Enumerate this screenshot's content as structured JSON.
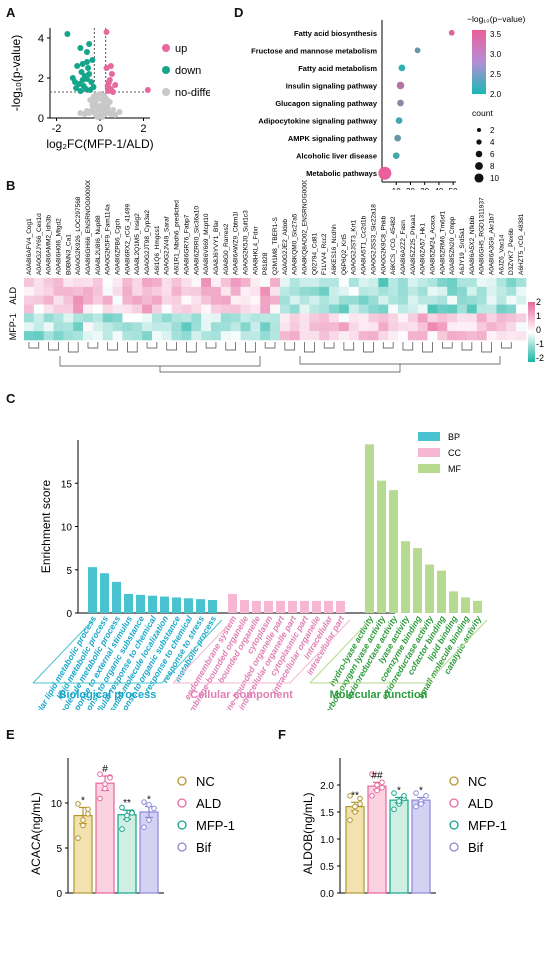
{
  "panel_labels": {
    "a": "A",
    "b": "B",
    "c": "C",
    "d": "D",
    "e": "E",
    "f": "F"
  },
  "chart_data": [
    {
      "panel": "A",
      "type": "scatter",
      "xlabel": "log₂FC(MFP-1/ALD)",
      "ylabel": "-log₁₀(p-value)",
      "xlim": [
        -2.3,
        2.3
      ],
      "ylim": [
        0,
        4.5
      ],
      "xticks": [
        "-2",
        "0",
        "2"
      ],
      "yticks": [
        "0",
        "2",
        "4"
      ],
      "legend": [
        "up",
        "down",
        "no-difference"
      ],
      "colors": {
        "up": "#e7689e",
        "down": "#14a58b",
        "no-difference": "#c8c8c8"
      },
      "points": {
        "up": [
          [
            0.3,
            4.3
          ],
          [
            0.35,
            1.6
          ],
          [
            0.45,
            1.9
          ],
          [
            0.5,
            1.45
          ],
          [
            0.55,
            2.2
          ],
          [
            0.4,
            1.75
          ],
          [
            0.6,
            1.3
          ],
          [
            0.7,
            1.65
          ],
          [
            0.3,
            2.5
          ],
          [
            2.2,
            1.4
          ],
          [
            0.5,
            2.6
          ],
          [
            0.38,
            1.35
          ]
        ],
        "down": [
          [
            -1.5,
            4.2
          ],
          [
            -0.9,
            3.5
          ],
          [
            -0.6,
            3.3
          ],
          [
            -0.5,
            3.7
          ],
          [
            -0.8,
            2.7
          ],
          [
            -0.7,
            2.1
          ],
          [
            -0.95,
            1.7
          ],
          [
            -1.1,
            1.5
          ],
          [
            -0.6,
            1.95
          ],
          [
            -0.55,
            2.5
          ],
          [
            -0.45,
            1.4
          ],
          [
            -0.85,
            2.3
          ],
          [
            -1.25,
            2.0
          ],
          [
            -0.35,
            2.9
          ],
          [
            -0.75,
            1.6
          ],
          [
            -1.05,
            2.6
          ],
          [
            -0.4,
            1.8
          ],
          [
            -0.65,
            1.45
          ],
          [
            -0.5,
            2.2
          ],
          [
            -0.9,
            1.35
          ],
          [
            -1.15,
            1.8
          ],
          [
            -0.6,
            2.8
          ],
          [
            -0.3,
            1.55
          ],
          [
            -0.8,
            1.9
          ]
        ],
        "nodiff": [
          [
            -0.1,
            1.0
          ],
          [
            0.1,
            0.9
          ],
          [
            -0.2,
            0.8
          ],
          [
            0.2,
            0.7
          ],
          [
            0.0,
            0.6
          ],
          [
            -0.3,
            0.5
          ],
          [
            0.3,
            0.45
          ],
          [
            -0.05,
            0.4
          ],
          [
            0.15,
            0.3
          ],
          [
            -0.25,
            0.25
          ],
          [
            0.25,
            0.2
          ],
          [
            -0.4,
            0.35
          ],
          [
            0.4,
            0.3
          ],
          [
            0.05,
            0.15
          ],
          [
            -0.15,
            0.1
          ],
          [
            0.35,
            0.55
          ],
          [
            -0.35,
            0.65
          ],
          [
            0.12,
            0.5
          ],
          [
            -0.12,
            0.55
          ],
          [
            0.5,
            0.2
          ],
          [
            -0.5,
            0.25
          ],
          [
            0.6,
            0.4
          ],
          [
            -0.6,
            0.35
          ],
          [
            0.2,
            1.1
          ],
          [
            -0.2,
            1.15
          ],
          [
            0.0,
            1.2
          ],
          [
            0.45,
            0.8
          ],
          [
            -0.45,
            0.9
          ],
          [
            0.1,
            0.05
          ],
          [
            -0.1,
            0.05
          ],
          [
            0.7,
            0.15
          ],
          [
            -0.7,
            0.2
          ],
          [
            0.3,
            0.95
          ],
          [
            -0.3,
            1.05
          ],
          [
            0.9,
            0.3
          ],
          [
            -0.9,
            0.25
          ]
        ]
      },
      "threshold_y": 1.3,
      "threshold_x": [
        -0.26,
        0.26
      ]
    },
    {
      "panel": "D",
      "type": "scatter",
      "pathways": [
        "Fatty acid biosynthesis",
        "Fructose and mannose metabolism",
        "Fatty acid metabolism",
        "Insulin signaling pathway",
        "Glucagon signaling pathway",
        "Adipocytokine signaling pathway",
        "AMPK signaling pathway",
        "Alcoholic liver disease",
        "Metabolic pathways"
      ],
      "x": [
        49,
        25,
        14,
        13,
        13,
        12,
        11,
        10,
        2
      ],
      "count": [
        2,
        2,
        3,
        4,
        3,
        3,
        3,
        3,
        10
      ],
      "neglog10p": [
        3.5,
        2.6,
        2.15,
        3.2,
        2.9,
        2.3,
        2.6,
        2.35,
        3.6
      ],
      "xlim": [
        0,
        52
      ],
      "xticks": [
        "10",
        "20",
        "30",
        "40",
        "50"
      ],
      "colorbar_title": "−log₁₀(p−value)",
      "colorbar_ticks": [
        "3.5",
        "3.0",
        "2.5",
        "2.0"
      ],
      "color_range": [
        2.0,
        3.6
      ],
      "size_title": "count",
      "size_ticks": [
        "2",
        "4",
        "6",
        "8",
        "10"
      ]
    },
    {
      "panel": "B",
      "type": "heatmap",
      "row_groups": [
        "ALD",
        "MFP-1"
      ],
      "columns": [
        "A0A8I6AFV4_Cog1",
        "A0A0G2JY66_Ces1d",
        "A0A8I6AMM2_Idh3b",
        "A0A8I6H0I6_Mtgd2",
        "B0BNN3_Ca1",
        "A0A0G2K926_LOC297568",
        "A0A8I6GH66_ENSRNOG00000068353",
        "A0A8L2U8I6_Nup88",
        "A0A0G2K5F9_Fam114a",
        "A0A8I6ZPB6_Cgch",
        "A0A8I6RX2_rCG_41499",
        "A0A8L2Q1M5_Insig2",
        "A0A0G2JT98_Cyp3a2",
        "A6I1Q6_Hmgcs1",
        "A0A0G2JV49_Saraf",
        "A6I1R1_Nbdh6_predicted",
        "A0A8I6GR76_Fabp7",
        "A0A8I6ZRR0_Slc36a10",
        "A0A8I6V669_Mcpt10",
        "A0A8J6YVY1_Bfar",
        "A0A8G0_Rarres2",
        "A0A8I6AWZ9_Cbtm1l",
        "A0A0G2K5J0_Sult1c3",
        "A0A8HKL4_Fdxr",
        "P81828",
        "Q2M1M8_TBER1-S",
        "A0A0G2JE2_Aldob",
        "A0A8KQM0_Slc27a5",
        "A0A8KQ8AD02_ENSRNOG00000069655",
        "Q02794_Cd81",
        "F1LVV4_Rcc2",
        "A6KES16_Ncdhh",
        "Q6P6Q2_Krt5",
        "A0A0G2JST3_Krt1",
        "A0A8IA5T1_Cc2d1b",
        "A0A0G2JSS3_Slc22a18",
        "A0A0G2K9C8_Phkb",
        "A6KCS_rCG_45482",
        "A0A8I6A2Z2_Fasn",
        "A0A8I5ZZ25_Prkaa1",
        "A0A8I6ZA57_Hk1",
        "A0A8I5ZM24_Acaca",
        "A0A8I5ZRM6_Tm6sf1",
        "A0A8I5ZN20_Cmpp",
        "A6JY19_Srd5a1",
        "A0A8I6A5X2_Nfkbib",
        "A0A8I6GH5_RGD1311937",
        "A0A8I6A3G9_Akr1b7",
        "A6JZ6_Vac14",
        "D3ZVK7_Pex6b",
        "A6HZT5_rCG_48381"
      ],
      "n_rows": 7,
      "color_scale": [
        "#1bb4a4",
        "#ffffff",
        "#e7689e"
      ],
      "value_range": [
        -2.5,
        2.5
      ],
      "colorbar_ticks": [
        "2",
        "1",
        "0",
        "-1",
        "-2"
      ]
    },
    {
      "panel": "C",
      "type": "bar",
      "ylabel": "Enrichment score",
      "ylim": [
        0,
        20
      ],
      "yticks": [
        "0",
        "5",
        "10",
        "15"
      ],
      "legend": [
        "BP",
        "CC",
        "MF"
      ],
      "colors": {
        "BP": "#48c3cf",
        "CC": "#f7b6d1",
        "MF": "#b6da8f"
      },
      "groups": [
        {
          "name": "BP",
          "title": "Biological process",
          "categories": [
            "cellular lipid metabolic process",
            "lipid metabolic process",
            "small molecule metabolic process",
            "response to external stimulus",
            "response to organic substance",
            "cellular response to chemical",
            "small molecule localization",
            "cellular response to organic substance",
            "response to chemical",
            "response to stress",
            "metabolic process"
          ],
          "values": [
            5.3,
            4.6,
            3.6,
            2.2,
            2.1,
            2.0,
            1.9,
            1.8,
            1.7,
            1.6,
            1.5
          ]
        },
        {
          "name": "CC",
          "title": "Cellular component",
          "categories": [
            "endomembrane system",
            "intracellular membrane-bounded organelle",
            "bounded organelle",
            "cytoplasm",
            "membrane-bounded organelle part",
            "intracellular organelle part",
            "cytoplasmic part",
            "intracellular organelle",
            "intracellular",
            "intracellular part"
          ],
          "values": [
            2.2,
            1.5,
            1.4,
            1.4,
            1.4,
            1.4,
            1.4,
            1.4,
            1.4,
            1.4
          ]
        },
        {
          "name": "MF",
          "title": "Molecular function",
          "categories": [
            "hydro-lyase activity",
            "carbon-oxygen lyase activity",
            "oxidoreductase activity",
            "lyase activity",
            "coenzyme binding",
            "oxidoreductase activity",
            "cofactor binding",
            "lipid binding",
            "small molecule binding",
            "catalytic activity"
          ],
          "values": [
            19.5,
            15.3,
            14.2,
            8.3,
            7.5,
            5.6,
            4.9,
            2.5,
            1.8,
            1.4
          ]
        }
      ]
    },
    {
      "panel": "E",
      "type": "bar",
      "ylabel": "ACACA(ng/mL)",
      "ylim": [
        0,
        15
      ],
      "yticks": [
        "0",
        "5",
        "10"
      ],
      "categories": [
        "NC",
        "ALD",
        "MFP-1",
        "Bif"
      ],
      "values": [
        8.6,
        12.2,
        8.7,
        9.0
      ],
      "errors": [
        0.9,
        0.8,
        0.5,
        0.6
      ],
      "annotations": [
        "*",
        "#",
        "**",
        "*"
      ],
      "colors": [
        "#b5952f",
        "#e7689e",
        "#14a58b",
        "#8c88d8"
      ],
      "fills": [
        "#f2e2b0",
        "#fbd2e0",
        "#cfefe3",
        "#d4d2f2"
      ],
      "points": [
        [
          6.1,
          7.5,
          8.8,
          9.9,
          8.1,
          9.3
        ],
        [
          10.5,
          11.6,
          12.9,
          13.2,
          12.1,
          12.8
        ],
        [
          7.1,
          8.2,
          9.0,
          9.5,
          8.6,
          8.9
        ],
        [
          7.3,
          8.1,
          9.4,
          10.1,
          9.8
        ]
      ]
    },
    {
      "panel": "F",
      "type": "bar",
      "ylabel": "ALDOB(ng/mL)",
      "ylim": [
        0,
        2.5
      ],
      "yticks": [
        "0.0",
        "0.5",
        "1.0",
        "1.5",
        "2.0"
      ],
      "categories": [
        "NC",
        "ALD",
        "MFP-1",
        "Bif"
      ],
      "values": [
        1.6,
        1.98,
        1.72,
        1.72
      ],
      "errors": [
        0.08,
        0.07,
        0.05,
        0.05
      ],
      "annotations": [
        "**",
        "##",
        "*",
        "*"
      ],
      "colors": [
        "#b5952f",
        "#e7689e",
        "#14a58b",
        "#8c88d8"
      ],
      "fills": [
        "#f2e2b0",
        "#fbd2e0",
        "#cfefe3",
        "#d4d2f2"
      ],
      "points": [
        [
          1.35,
          1.5,
          1.65,
          1.8,
          1.6,
          1.75
        ],
        [
          1.8,
          1.9,
          2.05,
          2.2,
          2.0,
          1.95
        ],
        [
          1.55,
          1.65,
          1.75,
          1.85,
          1.7,
          1.8
        ],
        [
          1.6,
          1.7,
          1.8,
          1.85,
          1.65
        ]
      ]
    }
  ]
}
